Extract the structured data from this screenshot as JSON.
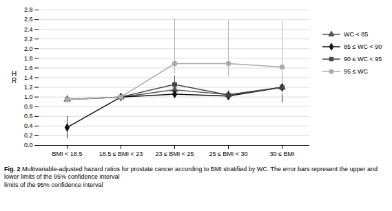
{
  "chart_data": {
    "type": "line",
    "categories": [
      "BMI < 18.5",
      "18.5 ≤ BMI < 23",
      "23 ≤ BMI < 25",
      "25 ≤ BMI < 30",
      "30 ≤ BMI"
    ],
    "series": [
      {
        "name": "WC < 85",
        "color": "#555555",
        "marker": "triangle",
        "values": [
          0.95,
          1.0,
          1.15,
          1.05,
          1.2
        ],
        "lower": [
          0.87,
          1.0,
          1.06,
          0.97,
          1.05
        ],
        "upper": [
          1.04,
          1.0,
          1.24,
          1.13,
          1.35
        ]
      },
      {
        "name": "85 ≤ WC < 90",
        "color": "#111111",
        "marker": "diamond",
        "values": [
          0.37,
          1.0,
          1.06,
          1.02,
          1.2
        ],
        "lower": [
          0.14,
          1.0,
          0.99,
          0.94,
          0.88
        ],
        "upper": [
          0.6,
          1.0,
          1.13,
          1.1,
          1.52
        ]
      },
      {
        "name": "90 ≤ WC < 95",
        "color": "#444444",
        "marker": "square",
        "values": [
          0.95,
          1.0,
          1.26,
          1.04,
          1.2
        ],
        "lower": [
          0.87,
          1.0,
          1.08,
          0.96,
          1.04
        ],
        "upper": [
          1.03,
          1.0,
          1.44,
          1.12,
          1.36
        ]
      },
      {
        "name": "95 ≤ WC",
        "color": "#aaaaaa",
        "marker": "circle",
        "values": [
          0.95,
          1.0,
          1.69,
          1.69,
          1.62
        ],
        "lower": [
          0.87,
          1.0,
          1.48,
          1.42,
          1.04
        ],
        "upper": [
          1.03,
          1.0,
          2.63,
          2.58,
          2.57
        ]
      }
    ],
    "ylabel": "H\nR",
    "ylim": [
      0,
      2.8
    ],
    "yticks": [
      {
        "value": 0,
        "label": "0.0"
      },
      0.2,
      0.4,
      0.6,
      0.8,
      {
        "value": 1,
        "label": "1.0"
      },
      1.2,
      1.4,
      1.6,
      1.8,
      {
        "value": 2,
        "label": "2.0"
      },
      2.2,
      2.4,
      2.6,
      2.8
    ],
    "grid": true,
    "legend": "right",
    "caption_bold": "Fig. 2",
    "caption": [
      "Multivariable-adjusted hazard ratios for prostate cancer according to BMI stratified by WC. The error bars represent the upper and lower limits of the 95% confidence interval",
      "limits of the 95% confidence interval"
    ]
  }
}
